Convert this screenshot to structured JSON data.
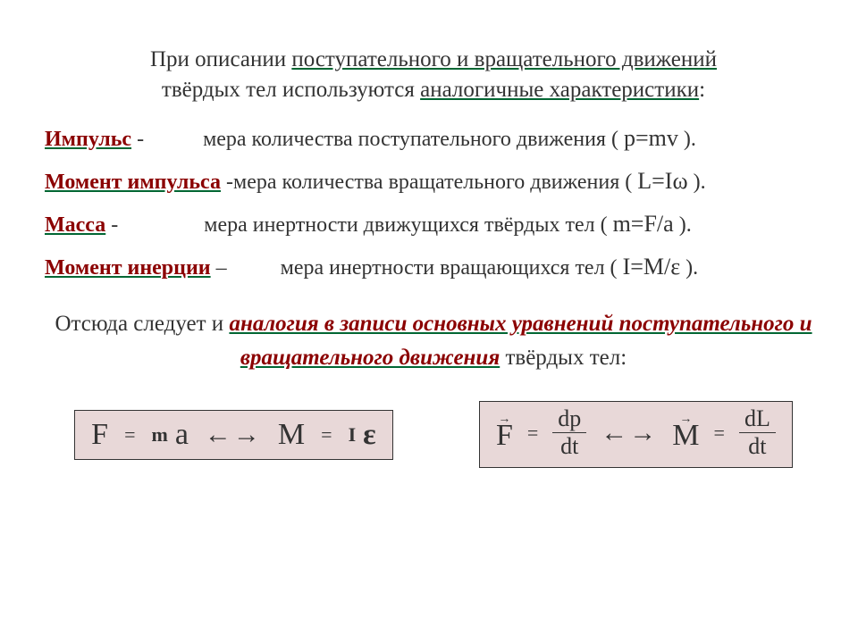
{
  "colors": {
    "background": "#ffffff",
    "text": "#333333",
    "term": "#8b0000",
    "underline": "#006633",
    "box_bg": "#e8d8d8",
    "box_border": "#333333"
  },
  "typography": {
    "family": "Times New Roman",
    "body_size_pt": 24,
    "formula_size_pt": 28,
    "big_letter_pt": 34
  },
  "intro": {
    "line1_pre": "При описании ",
    "line1_underlined": "поступательного и вращательного движений",
    "line2_pre": "твёрдых тел используются ",
    "line2_underlined": "аналогичные характеристики",
    "line2_post": ":"
  },
  "defs": [
    {
      "term": "Импульс",
      "dash": " - ",
      "text": "мера количества поступательного движения ( ",
      "formula": "p=mv",
      "close": " )."
    },
    {
      "term": "Момент импульса",
      "dash": " -",
      "text": "мера количества вращательного движения ( ",
      "formula": "L=Iω",
      "close": " )."
    },
    {
      "term": "Масса",
      "dash": " - ",
      "text": "мера инертности движущихся твёрдых тел ( ",
      "formula": "m=F/a",
      "close": " )."
    },
    {
      "term": "Момент инерции",
      "dash": " – ",
      "text": "мера инертности вращающихся тел ( ",
      "formula": "I=M/ε",
      "close": " )."
    }
  ],
  "conclusion": {
    "pre": "Отсюда следует и ",
    "underlined": "аналогия в записи основных уравнений поступательного и вращательного движения",
    "post": " твёрдых тел:"
  },
  "eq_box_1": {
    "F": "F",
    "eq1": "=",
    "m": "m",
    "a": "a",
    "arrows": "←→",
    "M": "M",
    "eq2": "=",
    "I": "I",
    "eps": "ε"
  },
  "eq_box_2": {
    "F": "F",
    "eq1": "=",
    "dp": "dp",
    "dt1": "dt",
    "arrows": "←→",
    "M": "M",
    "eq2": "=",
    "dL": "dL",
    "dt2": "dt",
    "vec_arrow": "→"
  }
}
